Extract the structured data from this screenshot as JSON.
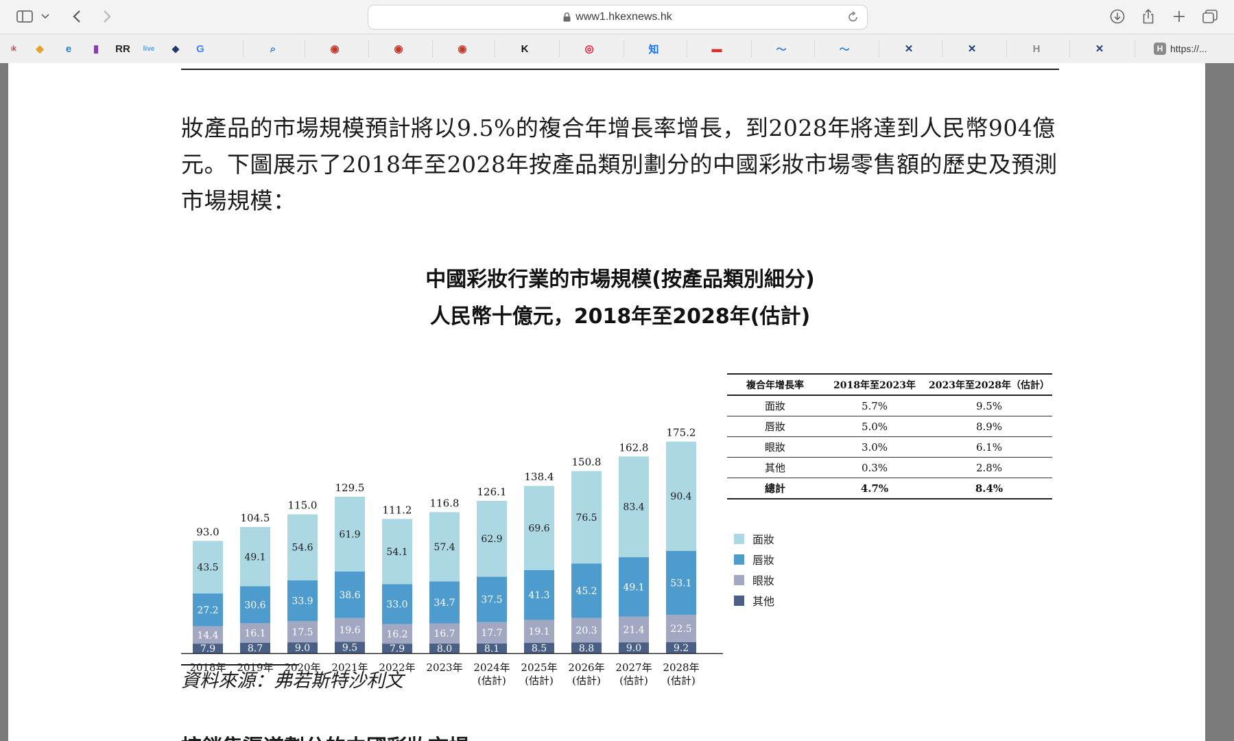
{
  "browser": {
    "url": "www1.hkexnews.hk",
    "favorites": [
      {
        "icon": "red-logo-icon",
        "glyph": "𐌹𐌺",
        "color": "#e0382c"
      },
      {
        "icon": "colorful-diamond-icon",
        "glyph": "◆",
        "color": "#e7a12c"
      },
      {
        "icon": "ie-browser-icon",
        "glyph": "e",
        "color": "#2a7fd6"
      },
      {
        "icon": "book-icon",
        "glyph": "▮",
        "color": "#8a3bb0"
      },
      {
        "icon": "rr-icon",
        "glyph": "RR",
        "color": "#222222"
      },
      {
        "icon": "live-icon",
        "glyph": "live",
        "color": "#4aa3df"
      },
      {
        "icon": "bird-icon",
        "glyph": "⬥",
        "color": "#1e3a6e"
      },
      {
        "icon": "google-icon",
        "glyph": "G",
        "color": "#4285f4"
      },
      {
        "icon": "search-icon",
        "glyph": "⌕",
        "color": "#2b6fd6"
      },
      {
        "icon": "seal-icon",
        "glyph": "◉",
        "color": "#c0392b"
      },
      {
        "icon": "seal-icon",
        "glyph": "◉",
        "color": "#c0392b"
      },
      {
        "icon": "seal-icon",
        "glyph": "◉",
        "color": "#c0392b"
      },
      {
        "icon": "k-logo-icon",
        "glyph": "K",
        "color": "#111111"
      },
      {
        "icon": "weibo-icon",
        "glyph": "◎",
        "color": "#e6162d"
      },
      {
        "icon": "zhihu-icon",
        "glyph": "知",
        "color": "#1772f6"
      },
      {
        "icon": "red-badge-icon",
        "glyph": "▬",
        "color": "#d9302a"
      },
      {
        "icon": "swoosh-icon",
        "glyph": "～",
        "color": "#2c7fd6"
      },
      {
        "icon": "swoosh-icon",
        "glyph": "～",
        "color": "#2c7fd6"
      },
      {
        "icon": "x-logo-icon",
        "glyph": "✕",
        "color": "#1d3f7a"
      },
      {
        "icon": "x-logo-icon",
        "glyph": "✕",
        "color": "#1d3f7a"
      },
      {
        "icon": "h-logo-icon",
        "glyph": "H",
        "color": "#8a8a8a"
      },
      {
        "icon": "x-logo-icon",
        "glyph": "✕",
        "color": "#1d3f7a"
      }
    ],
    "last_favorite_label": "https://..."
  },
  "document": {
    "paragraph": "妝產品的市場規模預計將以9.5%的複合年增長率增長，到2028年將達到人民幣904億元。下圖展示了2018年至2028年按產品類別劃分的中國彩妝市場零售額的歷史及預測市場規模：",
    "chart_title_line1": "中國彩妝行業的市場規模(按產品類別細分)",
    "chart_title_line2": "人民幣十億元，2018年至2028年(估計)",
    "source": "資料來源：弗若斯特沙利文",
    "next_heading": "按銷售渠道劃分的中國彩妝市場"
  },
  "chart_data": {
    "type": "bar",
    "stacked": true,
    "categories": [
      "2018年",
      "2019年",
      "2020年",
      "2021年",
      "2022年",
      "2023年",
      "2024年",
      "2025年",
      "2026年",
      "2027年",
      "2028年"
    ],
    "category_sublabels": [
      "",
      "",
      "",
      "",
      "",
      "",
      "(估計)",
      "(估計)",
      "(估計)",
      "(估計)",
      "(估計)"
    ],
    "series": [
      {
        "name": "其他",
        "color": "#4a5f86",
        "values": [
          7.9,
          8.7,
          9.0,
          9.5,
          7.9,
          8.0,
          8.1,
          8.5,
          8.8,
          9.0,
          9.2
        ]
      },
      {
        "name": "眼妝",
        "color": "#a2a8c2",
        "values": [
          14.4,
          16.1,
          17.5,
          19.6,
          16.2,
          16.7,
          17.7,
          19.1,
          20.3,
          21.4,
          22.5
        ]
      },
      {
        "name": "唇妝",
        "color": "#4e9bcd",
        "values": [
          27.2,
          30.6,
          33.9,
          38.6,
          33.0,
          34.7,
          37.5,
          41.3,
          45.2,
          49.1,
          53.1
        ]
      },
      {
        "name": "面妝",
        "color": "#acd8e4",
        "values": [
          43.5,
          49.1,
          54.6,
          61.9,
          54.1,
          57.4,
          62.9,
          69.6,
          76.5,
          83.4,
          90.4
        ]
      }
    ],
    "totals": [
      "93.0",
      "104.5",
      "115.0",
      "129.5",
      "111.2",
      "116.8",
      "126.1",
      "138.4",
      "150.8",
      "162.8",
      "175.2"
    ],
    "legend": [
      "面妝",
      "唇妝",
      "眼妝",
      "其他"
    ],
    "legend_position": "right",
    "grid": false,
    "ylim": [
      0,
      180
    ]
  },
  "cagr_table": {
    "headers": [
      "複合年增長率",
      "2018年至2023年",
      "2023年至2028年（估計）"
    ],
    "rows": [
      [
        "面妝",
        "5.7%",
        "9.5%"
      ],
      [
        "唇妝",
        "5.0%",
        "8.9%"
      ],
      [
        "眼妝",
        "3.0%",
        "6.1%"
      ],
      [
        "其他",
        "0.3%",
        "2.8%"
      ],
      [
        "總計",
        "4.7%",
        "8.4%"
      ]
    ]
  }
}
